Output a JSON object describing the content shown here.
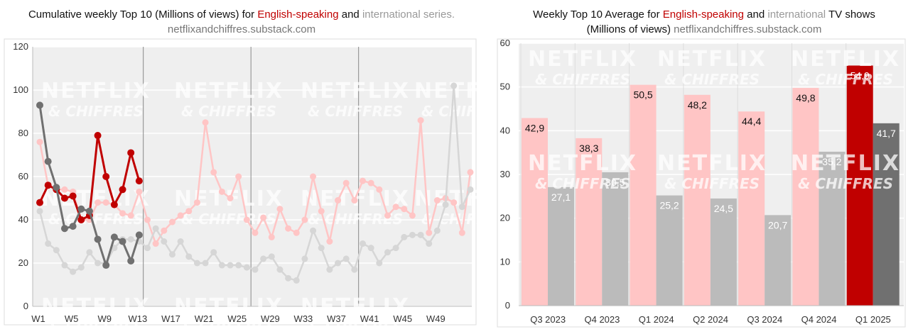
{
  "left": {
    "title_line1_prefix": "Cumulative weekly Top 10 (Millions of views) for ",
    "title_english": "English-speaking",
    "title_and": " and ",
    "title_international": "international series.",
    "title_line2": "netflixandchiffres.substack.com"
  },
  "right": {
    "title_line1_prefix": "Weekly Top 10 Average for ",
    "title_english": "English-speaking",
    "title_and": " and ",
    "title_international": "international",
    "title_suffix": " TV shows",
    "title_line2_bold": "(Millions of views)",
    "title_line2_rest": " netflixandchiffres.substack.com"
  },
  "watermark": {
    "line1": "NETFLIX",
    "line2": "& CHIFFRES"
  },
  "colors": {
    "english_highlight": "#c00000",
    "international_highlight": "#707070",
    "english_faded": "#ffc5c5",
    "international_faded": "#d6d6d6",
    "plot_background": "#efefef"
  },
  "chart_data": [
    {
      "type": "line",
      "title": "Cumulative weekly Top 10 (Millions of views) for English-speaking and international series.",
      "ylim": [
        0,
        120
      ],
      "yticks": [
        0,
        20,
        40,
        60,
        80,
        100,
        120
      ],
      "xtick_labels": [
        "W1",
        "W5",
        "W9",
        "W13",
        "W17",
        "W21",
        "W25",
        "W29",
        "W33",
        "W37",
        "W41",
        "W45",
        "W49"
      ],
      "xtick_weeks": [
        1,
        5,
        9,
        13,
        17,
        21,
        25,
        29,
        33,
        37,
        41,
        45,
        49
      ],
      "week_range": [
        1,
        53
      ],
      "grid": true,
      "series": [
        {
          "name": "English-speaking",
          "role": "previous year",
          "x": [
            1,
            2,
            3,
            4,
            5,
            6,
            7,
            8,
            9,
            10,
            11,
            12,
            13,
            14,
            15,
            16,
            17,
            18,
            19,
            20,
            21,
            22,
            23,
            24,
            25,
            26,
            27,
            28,
            29,
            30,
            31,
            32,
            33,
            34,
            35,
            36,
            37,
            38,
            39,
            40,
            41,
            42,
            43,
            44,
            45,
            46,
            47,
            48,
            49,
            50,
            51,
            52,
            53
          ],
          "values": [
            76,
            56,
            54,
            54,
            53,
            40,
            40,
            48,
            48,
            47,
            43,
            42,
            53,
            40,
            29,
            35,
            39,
            42,
            44,
            48,
            85,
            62,
            53,
            50,
            60,
            40,
            34,
            41,
            32,
            45,
            36,
            34,
            40,
            60,
            44,
            30,
            49,
            57,
            49,
            58,
            57,
            54,
            42,
            46,
            45,
            42,
            86,
            34,
            49,
            50,
            48,
            34,
            62
          ]
        },
        {
          "name": "international",
          "role": "previous year",
          "x": [
            1,
            2,
            3,
            4,
            5,
            6,
            7,
            8,
            9,
            10,
            11,
            12,
            13,
            14,
            15,
            16,
            17,
            18,
            19,
            20,
            21,
            22,
            23,
            24,
            25,
            26,
            27,
            28,
            29,
            30,
            31,
            32,
            33,
            34,
            35,
            36,
            37,
            38,
            39,
            40,
            41,
            42,
            43,
            44,
            45,
            46,
            47,
            48,
            49,
            50,
            51,
            52,
            53
          ],
          "values": [
            44,
            29,
            26,
            19,
            16,
            18,
            25,
            20,
            20,
            27,
            31,
            31,
            30,
            27,
            36,
            30,
            24,
            30,
            23,
            20,
            20,
            25,
            19,
            19,
            19,
            18,
            17,
            22,
            23,
            17,
            13,
            12,
            22,
            35,
            27,
            17,
            20,
            22,
            17,
            29,
            27,
            20,
            25,
            27,
            32,
            33,
            33,
            29,
            35,
            47,
            102,
            46,
            54
          ]
        },
        {
          "name": "English-speaking",
          "role": "current year",
          "x": [
            1,
            2,
            3,
            4,
            5,
            6,
            7,
            8,
            9,
            10,
            11,
            12,
            13
          ],
          "values": [
            48,
            56,
            54,
            50,
            51,
            40,
            42,
            79,
            60,
            47,
            54,
            71,
            58
          ]
        },
        {
          "name": "international",
          "role": "current year",
          "x": [
            1,
            2,
            3,
            4,
            5,
            6,
            7,
            8,
            9,
            10,
            11,
            12,
            13
          ],
          "values": [
            93,
            67,
            55,
            36,
            37,
            45,
            44,
            31,
            19,
            32,
            30,
            21,
            33
          ]
        }
      ]
    },
    {
      "type": "bar",
      "title": "Weekly Top 10 Average for English-speaking and international TV shows (Millions of views)",
      "categories": [
        "Q3 2023",
        "Q4 2023",
        "Q1 2024",
        "Q2 2024",
        "Q3 2024",
        "Q4 2024",
        "Q1 2025"
      ],
      "ylim": [
        0,
        60
      ],
      "yticks": [
        0,
        10,
        20,
        30,
        40,
        50,
        60
      ],
      "grid": true,
      "series": [
        {
          "name": "English-speaking",
          "values": [
            42.9,
            38.3,
            50.5,
            48.2,
            44.4,
            49.8,
            54.9
          ],
          "labels": [
            "42,9",
            "38,3",
            "50,5",
            "48,2",
            "44,4",
            "49,8",
            "54,9"
          ]
        },
        {
          "name": "international",
          "values": [
            27.1,
            30.5,
            25.2,
            24.5,
            20.7,
            35.2,
            41.7
          ],
          "labels": [
            "27,1",
            "30,5",
            "25,2",
            "24,5",
            "20,7",
            "35,2",
            "41,7"
          ]
        }
      ]
    }
  ]
}
